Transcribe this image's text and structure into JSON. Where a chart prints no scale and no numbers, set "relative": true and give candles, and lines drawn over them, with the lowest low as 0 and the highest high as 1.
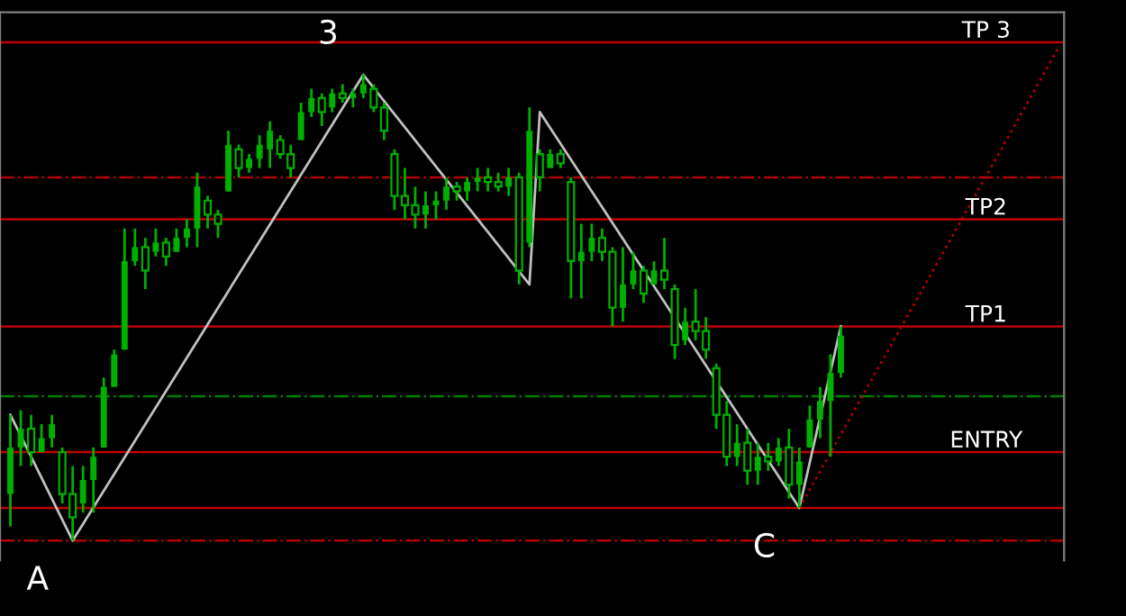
{
  "chart_data": {
    "type": "candlestick",
    "relative": true,
    "categories": [
      null,
      null,
      null,
      null,
      null,
      null,
      null,
      null,
      null,
      null,
      null,
      null,
      null,
      null,
      null,
      null,
      null,
      null,
      null,
      null,
      null,
      null,
      null,
      null,
      null,
      null,
      null,
      null,
      null,
      null,
      null,
      null,
      null,
      null,
      null,
      null,
      null,
      null,
      null,
      null,
      null,
      null,
      null,
      null,
      null,
      null,
      null,
      null,
      null,
      null,
      null,
      null,
      null,
      null,
      null,
      null,
      null,
      null,
      null,
      null,
      null,
      null,
      null,
      null,
      null,
      null,
      null,
      null,
      null,
      null,
      null,
      null,
      null,
      null,
      null,
      null,
      null,
      null,
      null,
      null,
      null,
      null,
      null,
      null,
      null,
      null,
      null,
      null,
      null,
      null,
      null,
      null,
      null,
      null,
      null,
      null,
      null,
      null,
      null,
      null,
      null,
      null
    ],
    "color": "#00b000",
    "ohlc": [
      [
        0.1,
        0.27,
        0.03,
        0.2
      ],
      [
        0.2,
        0.28,
        0.16,
        0.24
      ],
      [
        0.24,
        0.27,
        0.16,
        0.19
      ],
      [
        0.19,
        0.25,
        0.19,
        0.22
      ],
      [
        0.22,
        0.27,
        0.2,
        0.25
      ],
      [
        0.19,
        0.2,
        0.08,
        0.1
      ],
      [
        0.1,
        0.16,
        0,
        0.05
      ],
      [
        0.08,
        0.16,
        0.06,
        0.13
      ],
      [
        0.13,
        0.2,
        0.06,
        0.18
      ],
      [
        0.2,
        0.35,
        0.2,
        0.33
      ],
      [
        0.33,
        0.41,
        0.33,
        0.4
      ],
      [
        0.41,
        0.67,
        0.41,
        0.6
      ],
      [
        0.6,
        0.67,
        0.59,
        0.63
      ],
      [
        0.63,
        0.65,
        0.54,
        0.58
      ],
      [
        0.62,
        0.67,
        0.61,
        0.64
      ],
      [
        0.64,
        0.65,
        0.59,
        0.61
      ],
      [
        0.62,
        0.67,
        0.62,
        0.65
      ],
      [
        0.65,
        0.69,
        0.63,
        0.67
      ],
      [
        0.67,
        0.79,
        0.63,
        0.76
      ],
      [
        0.73,
        0.74,
        0.67,
        0.7
      ],
      [
        0.7,
        0.71,
        0.65,
        0.68
      ],
      [
        0.75,
        0.88,
        0.75,
        0.85
      ],
      [
        0.84,
        0.85,
        0.78,
        0.8
      ],
      [
        0.8,
        0.83,
        0.79,
        0.82
      ],
      [
        0.82,
        0.87,
        0.8,
        0.85
      ],
      [
        0.84,
        0.9,
        0.8,
        0.88
      ],
      [
        0.86,
        0.87,
        0.82,
        0.83
      ],
      [
        0.83,
        0.85,
        0.78,
        0.8
      ],
      [
        0.86,
        0.94,
        0.86,
        0.92
      ],
      [
        0.92,
        0.97,
        0.91,
        0.95
      ],
      [
        0.95,
        0.96,
        0.89,
        0.92
      ],
      [
        0.93,
        0.97,
        0.92,
        0.96
      ],
      [
        0.96,
        0.98,
        0.94,
        0.95
      ],
      [
        0.95,
        0.97,
        0.93,
        0.96
      ],
      [
        0.96,
        1.0,
        0.95,
        0.98
      ],
      [
        0.97,
        0.98,
        0.92,
        0.93
      ],
      [
        0.93,
        0.94,
        0.86,
        0.88
      ],
      [
        0.83,
        0.84,
        0.71,
        0.74
      ],
      [
        0.74,
        0.8,
        0.69,
        0.72
      ],
      [
        0.72,
        0.76,
        0.67,
        0.7
      ],
      [
        0.7,
        0.75,
        0.67,
        0.72
      ],
      [
        0.72,
        0.75,
        0.69,
        0.73
      ],
      [
        0.73,
        0.78,
        0.71,
        0.76
      ],
      [
        0.76,
        0.77,
        0.73,
        0.75
      ],
      [
        0.75,
        0.78,
        0.73,
        0.77
      ],
      [
        0.77,
        0.8,
        0.75,
        0.78
      ],
      [
        0.78,
        0.8,
        0.75,
        0.77
      ],
      [
        0.77,
        0.79,
        0.75,
        0.76
      ],
      [
        0.76,
        0.8,
        0.74,
        0.78
      ],
      [
        0.78,
        0.79,
        0.55,
        0.58
      ],
      [
        0.64,
        0.93,
        0.63,
        0.88
      ],
      [
        0.83,
        0.84,
        0.75,
        0.78
      ],
      [
        0.8,
        0.84,
        0.8,
        0.83
      ],
      [
        0.83,
        0.84,
        0.8,
        0.81
      ],
      [
        0.77,
        0.78,
        0.52,
        0.6
      ],
      [
        0.6,
        0.68,
        0.52,
        0.62
      ],
      [
        0.62,
        0.68,
        0.6,
        0.65
      ],
      [
        0.65,
        0.67,
        0.6,
        0.62
      ],
      [
        0.62,
        0.63,
        0.46,
        0.5
      ],
      [
        0.5,
        0.63,
        0.47,
        0.55
      ],
      [
        0.55,
        0.62,
        0.54,
        0.58
      ],
      [
        0.58,
        0.59,
        0.51,
        0.53
      ],
      [
        0.55,
        0.6,
        0.55,
        0.58
      ],
      [
        0.58,
        0.65,
        0.54,
        0.56
      ],
      [
        0.54,
        0.55,
        0.39,
        0.42
      ],
      [
        0.43,
        0.5,
        0.42,
        0.47
      ],
      [
        0.47,
        0.54,
        0.43,
        0.45
      ],
      [
        0.45,
        0.48,
        0.39,
        0.41
      ],
      [
        0.37,
        0.38,
        0.24,
        0.27
      ],
      [
        0.27,
        0.3,
        0.16,
        0.18
      ],
      [
        0.18,
        0.25,
        0.16,
        0.21
      ],
      [
        0.21,
        0.24,
        0.12,
        0.15
      ],
      [
        0.15,
        0.21,
        0.12,
        0.18
      ],
      [
        0.18,
        0.21,
        0.15,
        0.17
      ],
      [
        0.17,
        0.22,
        0.16,
        0.2
      ],
      [
        0.2,
        0.24,
        0.09,
        0.12
      ],
      [
        0.12,
        0.2,
        0.07,
        0.17
      ],
      [
        0.2,
        0.29,
        0.2,
        0.26
      ],
      [
        0.26,
        0.33,
        0.22,
        0.3
      ],
      [
        0.3,
        0.4,
        0.18,
        0.36
      ],
      [
        0.36,
        0.46,
        0.35,
        0.44
      ],
      null,
      null,
      null,
      null,
      null,
      null,
      null,
      null,
      null,
      null,
      null,
      null,
      null,
      null,
      null,
      null,
      null,
      null,
      null,
      null,
      null
    ],
    "series": [
      {
        "type": "line",
        "color": "#c0c0c0",
        "line_style": "solid",
        "values": [
          0.27,
          null,
          null,
          null,
          null,
          null,
          0,
          null,
          null,
          null,
          null,
          null,
          null,
          null,
          null,
          null,
          null,
          null,
          null,
          null,
          null,
          null,
          null,
          null,
          null,
          null,
          null,
          null,
          null,
          null,
          null,
          null,
          null,
          null,
          1.0,
          null,
          null,
          null,
          null,
          null,
          null,
          null,
          null,
          null,
          null,
          null,
          null,
          null,
          null,
          null,
          0.55,
          0.92,
          null,
          null,
          null,
          null,
          null,
          null,
          null,
          null,
          null,
          null,
          null,
          null,
          null,
          null,
          null,
          null,
          null,
          null,
          null,
          null,
          null,
          null,
          null,
          null,
          0.07,
          null,
          null,
          null,
          0.46,
          null,
          null,
          null,
          null,
          null,
          null,
          null,
          null,
          null,
          null,
          null,
          null,
          null,
          null,
          null,
          null,
          null,
          null,
          null,
          null,
          null
        ]
      },
      {
        "type": "line",
        "color": "#b00000",
        "line_style": "dotted",
        "values": [
          null,
          null,
          null,
          null,
          null,
          null,
          null,
          null,
          null,
          null,
          null,
          null,
          null,
          null,
          null,
          null,
          null,
          null,
          null,
          null,
          null,
          null,
          null,
          null,
          null,
          null,
          null,
          null,
          null,
          null,
          null,
          null,
          null,
          null,
          null,
          null,
          null,
          null,
          null,
          null,
          null,
          null,
          null,
          null,
          null,
          null,
          null,
          null,
          null,
          null,
          null,
          null,
          null,
          null,
          null,
          null,
          null,
          null,
          null,
          null,
          null,
          null,
          null,
          null,
          null,
          null,
          null,
          null,
          null,
          null,
          null,
          null,
          null,
          null,
          null,
          null,
          0.07,
          null,
          null,
          null,
          null,
          null,
          null,
          null,
          null,
          null,
          null,
          null,
          null,
          null,
          null,
          null,
          null,
          null,
          null,
          null,
          null,
          null,
          null,
          null,
          null,
          1.06
        ]
      }
    ],
    "ref_lines": [
      {
        "axis": "y",
        "value": 1.07,
        "label": "TP 3",
        "color": "#c00000",
        "line_style": "solid"
      },
      {
        "axis": "y",
        "value": 0.69,
        "label": "TP2",
        "color": "#c00000",
        "line_style": "solid"
      },
      {
        "axis": "y",
        "value": 0.46,
        "label": "TP1",
        "color": "#c00000",
        "line_style": "solid"
      },
      {
        "axis": "y",
        "value": 0.19,
        "label": "ENTRY",
        "color": "#c00000",
        "line_style": "solid"
      },
      {
        "axis": "y",
        "value": 0.07,
        "label": null,
        "color": "#c00000",
        "line_style": "solid"
      },
      {
        "axis": "y",
        "value": 0.78,
        "label": null,
        "color": "#b00000",
        "line_style": "dashdot"
      },
      {
        "axis": "y",
        "value": 0.31,
        "label": null,
        "color": "#008000",
        "line_style": "dashdot"
      },
      {
        "axis": "y",
        "value": 0,
        "label": null,
        "color": "#b00000",
        "line_style": "dashdot"
      }
    ],
    "annotations": [
      "A",
      "3",
      "C"
    ],
    "grid": false,
    "legend": false
  }
}
